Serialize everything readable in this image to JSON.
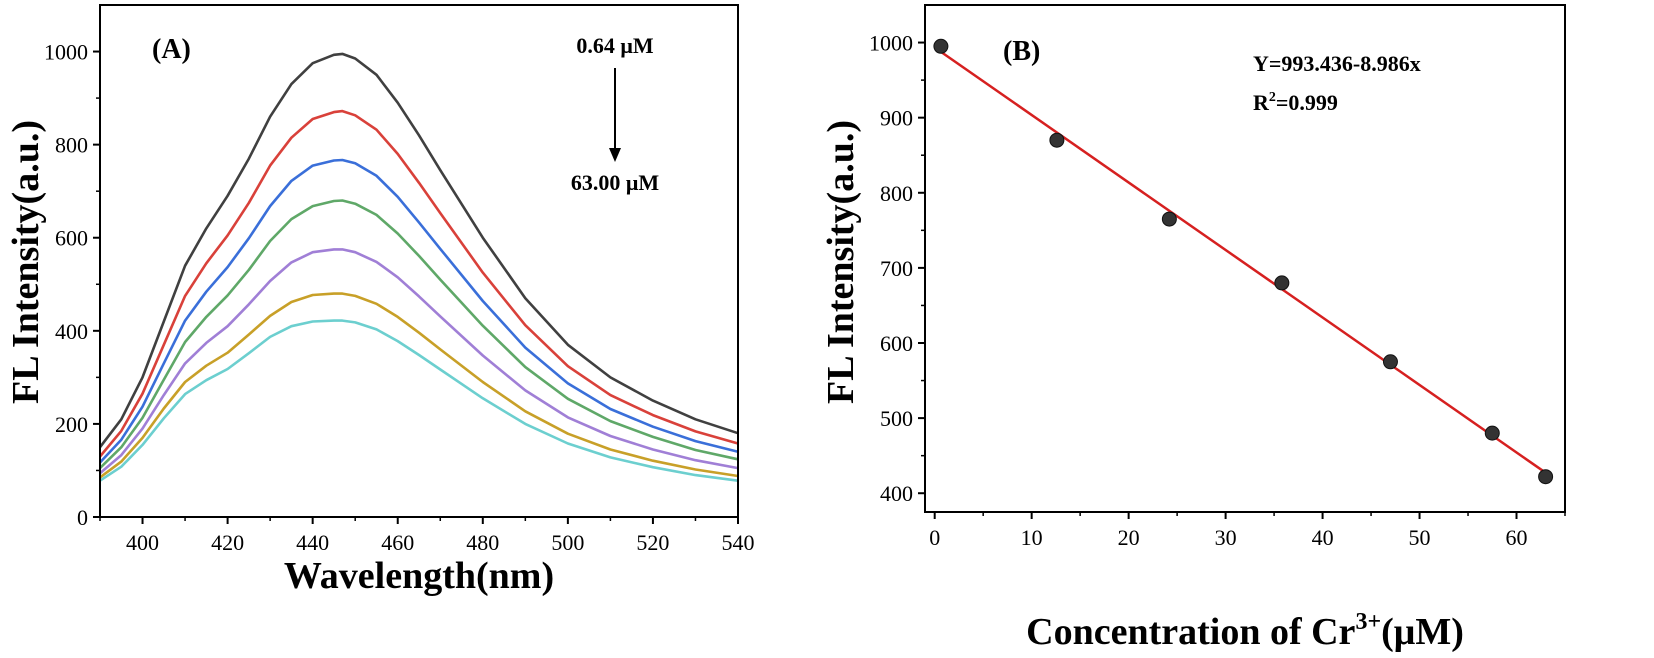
{
  "chart_data": [
    {
      "type": "line",
      "panel_label": "(A)",
      "xlabel": "Wavelength(nm)",
      "ylabel": "FL Intensity(a.u.)",
      "xlim": [
        390,
        540
      ],
      "ylim": [
        0,
        1100
      ],
      "xticks": [
        400,
        420,
        440,
        460,
        480,
        500,
        520,
        540
      ],
      "yticks": [
        0,
        200,
        400,
        600,
        800,
        1000
      ],
      "annotations": {
        "top": "0.64 μM",
        "bottom": "63.00 μM"
      },
      "x": [
        390,
        395,
        400,
        405,
        410,
        415,
        420,
        425,
        430,
        435,
        440,
        445,
        447,
        450,
        455,
        460,
        465,
        470,
        480,
        490,
        500,
        510,
        520,
        530,
        540
      ],
      "series": [
        {
          "color": "#404040",
          "values": [
            150,
            210,
            300,
            420,
            540,
            620,
            690,
            770,
            860,
            930,
            975,
            993,
            995,
            985,
            950,
            890,
            820,
            745,
            600,
            470,
            370,
            300,
            250,
            210,
            180
          ]
        },
        {
          "color": "#d9413a",
          "values": [
            130,
            185,
            265,
            370,
            475,
            545,
            605,
            675,
            755,
            815,
            855,
            870,
            872,
            863,
            832,
            780,
            718,
            653,
            525,
            412,
            324,
            262,
            219,
            184,
            158
          ]
        },
        {
          "color": "#3a6fd9",
          "values": [
            117,
            166,
            237,
            330,
            422,
            484,
            537,
            599,
            668,
            722,
            755,
            766,
            767,
            760,
            733,
            688,
            633,
            576,
            464,
            364,
            287,
            232,
            194,
            163,
            140
          ]
        },
        {
          "color": "#5fa868",
          "values": [
            105,
            150,
            213,
            295,
            376,
            430,
            476,
            531,
            593,
            640,
            668,
            679,
            680,
            673,
            649,
            609,
            561,
            510,
            411,
            322,
            254,
            206,
            172,
            144,
            124
          ]
        },
        {
          "color": "#a07fd6",
          "values": [
            94,
            133,
            190,
            262,
            330,
            374,
            410,
            457,
            507,
            547,
            569,
            575,
            575,
            569,
            548,
            515,
            474,
            431,
            347,
            272,
            214,
            174,
            145,
            122,
            105
          ]
        },
        {
          "color": "#c8a028",
          "values": [
            85,
            119,
            170,
            233,
            290,
            325,
            353,
            392,
            432,
            462,
            477,
            480,
            480,
            475,
            458,
            430,
            396,
            360,
            290,
            227,
            179,
            145,
            121,
            102,
            88
          ]
        },
        {
          "color": "#6ccfcf",
          "values": [
            78,
            108,
            155,
            212,
            264,
            294,
            318,
            352,
            387,
            410,
            420,
            422,
            422,
            418,
            403,
            378,
            348,
            317,
            255,
            200,
            158,
            128,
            107,
            90,
            78
          ]
        }
      ]
    },
    {
      "type": "scatter",
      "panel_label": "(B)",
      "xlabel": "Concentration of Cr",
      "xlabel_sup": "3+",
      "xlabel_suffix": "(μM)",
      "ylabel": "FL Intensity(a.u.)",
      "xlim": [
        -1,
        65
      ],
      "ylim": [
        375,
        1050
      ],
      "xticks": [
        0,
        10,
        20,
        30,
        40,
        50,
        60
      ],
      "yticks": [
        400,
        500,
        600,
        700,
        800,
        900,
        1000
      ],
      "equation": "Y=993.436-8.986x",
      "r2_prefix": "R",
      "r2_sup": "2",
      "r2_suffix": "=0.999",
      "fit": {
        "intercept": 993.436,
        "slope": -8.986,
        "color": "#d62020",
        "x_range": [
          0,
          63
        ]
      },
      "marker_color": "#333333",
      "points": [
        {
          "x": 0.64,
          "y": 995
        },
        {
          "x": 12.6,
          "y": 870
        },
        {
          "x": 24.2,
          "y": 765
        },
        {
          "x": 35.8,
          "y": 680
        },
        {
          "x": 47.0,
          "y": 575
        },
        {
          "x": 57.5,
          "y": 480
        },
        {
          "x": 63.0,
          "y": 422
        }
      ]
    }
  ]
}
